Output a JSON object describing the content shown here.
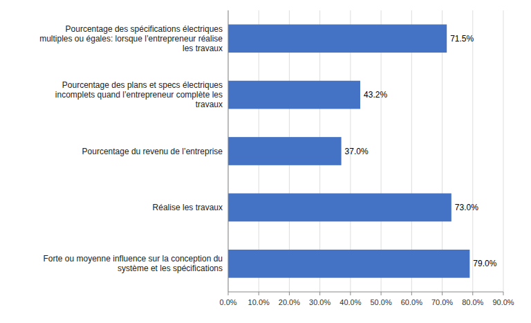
{
  "chart_data": {
    "type": "bar",
    "orientation": "horizontal",
    "categories": [
      "Forte ou moyenne influence sur la conception du\nsystème et les spécifications",
      "Réalise les travaux",
      "Pourcentage du revenu de l’entreprise",
      "Pourcentage des plans et specs électriques\nincomplets quand l’entrepreneur complète les\ntravaux",
      "Pourcentage des spécifications électriques\nmultiples ou égales: lorsque l’entrepreneur réalise\nles travaux"
    ],
    "values": [
      79.0,
      73.0,
      37.0,
      43.2,
      71.5
    ],
    "value_labels": [
      "79.0%",
      "73.0%",
      "37.0%",
      "43.2%",
      "71.5%"
    ],
    "data_labels": true,
    "color": "#4472C4",
    "xlim": [
      0,
      90
    ],
    "xticks": [
      {
        "value": 0,
        "label": "0.0%"
      },
      {
        "value": 10,
        "label": "10.0%"
      },
      {
        "value": 20,
        "label": "20.0%"
      },
      {
        "value": 30,
        "label": "30.0%"
      },
      {
        "value": 40,
        "label": "40.0%"
      },
      {
        "value": 50,
        "label": "50.0%"
      },
      {
        "value": 60,
        "label": "60.0%"
      },
      {
        "value": 70,
        "label": "70.0%"
      },
      {
        "value": 80,
        "label": "80.0%"
      },
      {
        "value": 90,
        "label": "90.0%"
      }
    ],
    "grid": true
  }
}
